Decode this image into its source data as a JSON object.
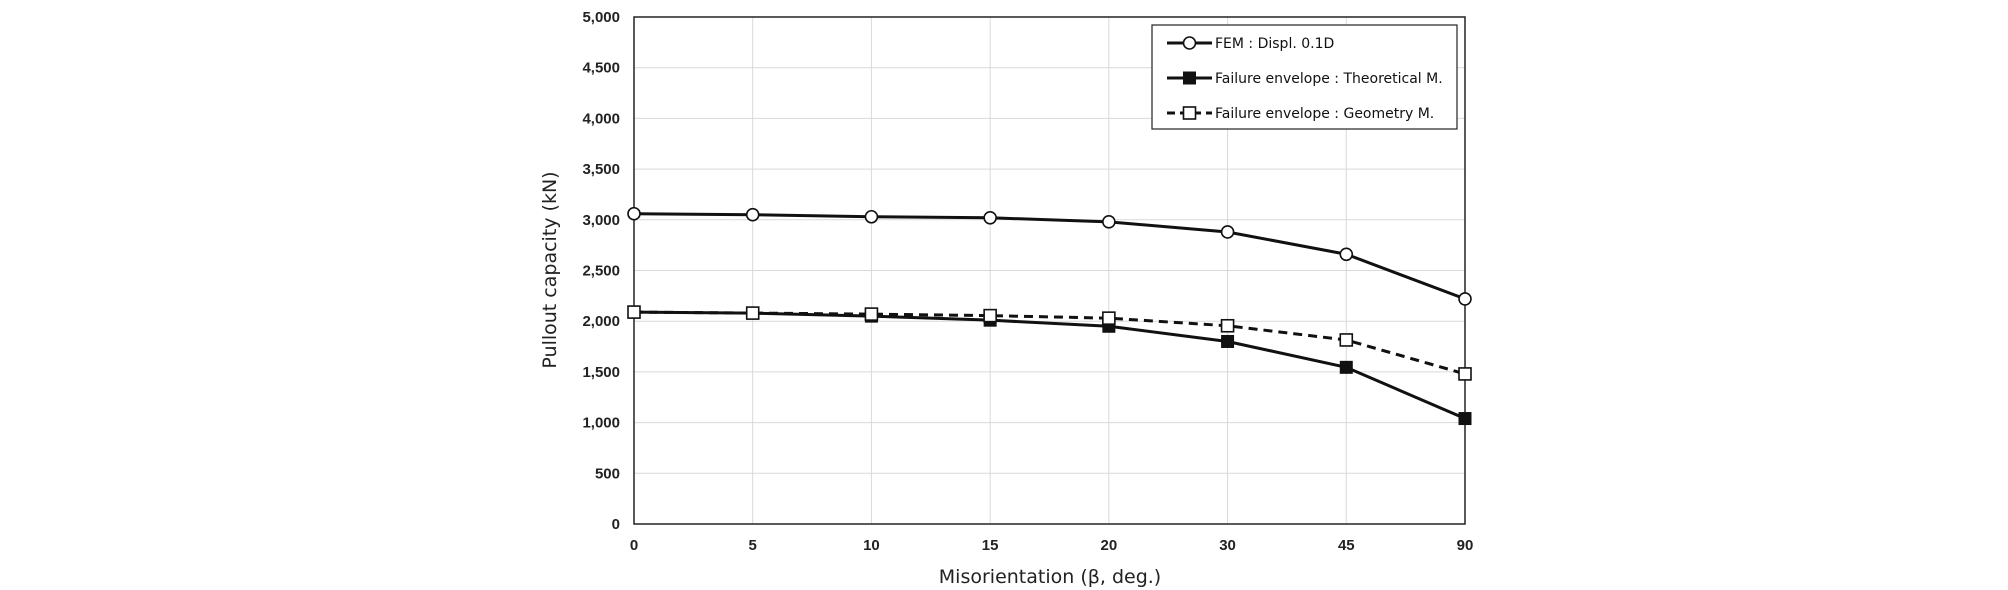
{
  "chart_data": {
    "type": "line",
    "categories": [
      "0",
      "5",
      "10",
      "15",
      "20",
      "30",
      "45",
      "90"
    ],
    "xlabel": "Misorientation (β, deg.)",
    "ylabel": "Pullout capacity (kN)",
    "ylim": [
      0,
      5000
    ],
    "ytick_labels": [
      "0",
      "500",
      "1,000",
      "1,500",
      "2,000",
      "2,500",
      "3,000",
      "3,500",
      "4,000",
      "4,500",
      "5,000"
    ],
    "grid": true,
    "legend_position": "top-right",
    "series": [
      {
        "name": "FEM : Displ. 0.1D",
        "values": [
          3060,
          3050,
          3030,
          3020,
          2980,
          2880,
          2660,
          2220
        ],
        "marker": "open-circle",
        "line": "solid",
        "color": "#111111"
      },
      {
        "name": "Failure envelope : Theoretical M.",
        "values": [
          2090,
          2080,
          2050,
          2010,
          1950,
          1800,
          1545,
          1040
        ],
        "marker": "filled-square",
        "line": "solid",
        "color": "#111111"
      },
      {
        "name": "Failure envelope : Geometry M.",
        "values": [
          2090,
          2080,
          2070,
          2055,
          2030,
          1955,
          1815,
          1480
        ],
        "marker": "open-square",
        "line": "dashed",
        "color": "#111111"
      }
    ]
  }
}
